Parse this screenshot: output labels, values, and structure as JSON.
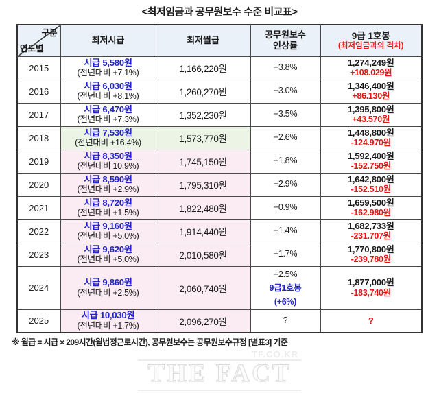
{
  "title": "<최저임금과 공무원보수 수준 비교표>",
  "colors": {
    "blue": "#2424cc",
    "red": "#ee1111",
    "header_bg": "#eaf1f8",
    "green_bg": "#ebf4e5",
    "pink_bg": "#fbecf3",
    "border": "#4a4a4a"
  },
  "table": {
    "header": {
      "corner_top": "구분",
      "corner_bottom": "연도별",
      "col_hourly": "최저시급",
      "col_monthly": "최저월급",
      "col_rate_line1": "공무원보수",
      "col_rate_line2": "인상률",
      "col_grade9": "9급 1호봉",
      "col_grade9_sub": "(최저임금과의 격차)"
    },
    "rows": [
      {
        "year": "2015",
        "hl": "none",
        "hourly": [
          {
            "t": "시급 5,580원",
            "c": "blue",
            "b": true
          },
          {
            "t": "(전년대비 +7.1%)",
            "c": "black",
            "b": false
          }
        ],
        "monthly": "1,166,220원",
        "rate": [
          {
            "t": "+3.8%",
            "c": "black",
            "b": false
          }
        ],
        "grade9": [
          {
            "t": "1,274,249원",
            "c": "black",
            "b": true
          },
          {
            "t": "+108.029원",
            "c": "red",
            "b": true
          }
        ]
      },
      {
        "year": "2016",
        "hl": "none",
        "hourly": [
          {
            "t": "시급 6,030원",
            "c": "blue",
            "b": true
          },
          {
            "t": "(전년대비 +8.1%)",
            "c": "black",
            "b": false
          }
        ],
        "monthly": "1,260,270원",
        "rate": [
          {
            "t": "+3.0%",
            "c": "black",
            "b": false
          }
        ],
        "grade9": [
          {
            "t": "1,346,400원",
            "c": "black",
            "b": true
          },
          {
            "t": "+86.130원",
            "c": "red",
            "b": true
          }
        ]
      },
      {
        "year": "2017",
        "hl": "none",
        "hourly": [
          {
            "t": "시급 6,470원",
            "c": "blue",
            "b": true
          },
          {
            "t": "(전년대비 +7.3%)",
            "c": "black",
            "b": false
          }
        ],
        "monthly": "1,352,230원",
        "rate": [
          {
            "t": "+3.5%",
            "c": "black",
            "b": false
          }
        ],
        "grade9": [
          {
            "t": "1,395,800원",
            "c": "black",
            "b": true
          },
          {
            "t": "+43.570원",
            "c": "red",
            "b": true
          }
        ]
      },
      {
        "year": "2018",
        "hl": "green",
        "hourly": [
          {
            "t": "시급 7,530원",
            "c": "blue",
            "b": true
          },
          {
            "t": "(전년대비 +16.4%)",
            "c": "black",
            "b": false
          }
        ],
        "monthly": "1,573,770원",
        "rate": [
          {
            "t": "+2.6%",
            "c": "black",
            "b": false
          }
        ],
        "grade9": [
          {
            "t": "1,448,800원",
            "c": "black",
            "b": true
          },
          {
            "t": "-124.970원",
            "c": "red",
            "b": true
          }
        ]
      },
      {
        "year": "2019",
        "hl": "pink",
        "hourly": [
          {
            "t": "시급 8,350원",
            "c": "blue",
            "b": true
          },
          {
            "t": "(전년대비 10.9%)",
            "c": "black",
            "b": false
          }
        ],
        "monthly": "1,745,150원",
        "rate": [
          {
            "t": "+1.8%",
            "c": "black",
            "b": false
          }
        ],
        "grade9": [
          {
            "t": "1,592,400원",
            "c": "black",
            "b": true
          },
          {
            "t": "-152.750원",
            "c": "red",
            "b": true
          }
        ]
      },
      {
        "year": "2020",
        "hl": "pink",
        "hourly": [
          {
            "t": "시급 8,590원",
            "c": "blue",
            "b": true
          },
          {
            "t": "(전년대비 +2.9%)",
            "c": "black",
            "b": false
          }
        ],
        "monthly": "1,795,310원",
        "rate": [
          {
            "t": "+2.9%",
            "c": "black",
            "b": false
          }
        ],
        "grade9": [
          {
            "t": "1,642,800원",
            "c": "black",
            "b": true
          },
          {
            "t": "-152.510원",
            "c": "red",
            "b": true
          }
        ]
      },
      {
        "year": "2021",
        "hl": "pink",
        "hourly": [
          {
            "t": "시급 8,720원",
            "c": "blue",
            "b": true
          },
          {
            "t": "(전년대비 +1.5%)",
            "c": "black",
            "b": false
          }
        ],
        "monthly": "1,822,480원",
        "rate": [
          {
            "t": "+0.9%",
            "c": "black",
            "b": false
          }
        ],
        "grade9": [
          {
            "t": "1,659,500원",
            "c": "black",
            "b": true
          },
          {
            "t": "-162.980원",
            "c": "red",
            "b": true
          }
        ]
      },
      {
        "year": "2022",
        "hl": "pink",
        "hourly": [
          {
            "t": "시급 9,160원",
            "c": "blue",
            "b": true
          },
          {
            "t": "(전년대비 +5.0%)",
            "c": "black",
            "b": false
          }
        ],
        "monthly": "1,914,440원",
        "rate": [
          {
            "t": "+1.4%",
            "c": "black",
            "b": false
          }
        ],
        "grade9": [
          {
            "t": "1,682,733원",
            "c": "black",
            "b": true
          },
          {
            "t": "-231.707원",
            "c": "red",
            "b": true
          }
        ]
      },
      {
        "year": "2023",
        "hl": "pink",
        "hourly": [
          {
            "t": "시급 9,620원",
            "c": "blue",
            "b": true
          },
          {
            "t": "(전년대비 +5.0%)",
            "c": "black",
            "b": false
          }
        ],
        "monthly": "2,010,580원",
        "rate": [
          {
            "t": "+1.7%",
            "c": "black",
            "b": false
          }
        ],
        "grade9": [
          {
            "t": "1,770,800원",
            "c": "black",
            "b": true
          },
          {
            "t": "-239,780원",
            "c": "red",
            "b": true
          }
        ]
      },
      {
        "year": "2024",
        "hl": "pink",
        "hourly": [
          {
            "t": "시급 9,860원",
            "c": "blue",
            "b": true
          },
          {
            "t": "(전년대비 +2.5%)",
            "c": "black",
            "b": false
          }
        ],
        "monthly": "2,060,740원",
        "rate": [
          {
            "t": "+2.5%",
            "c": "black",
            "b": false
          },
          {
            "t": "9급1호봉",
            "c": "blue",
            "b": true
          },
          {
            "t": "(+6%)",
            "c": "blue",
            "b": true
          }
        ],
        "grade9": [
          {
            "t": "1,877,000원",
            "c": "black",
            "b": true
          },
          {
            "t": "-183,740원",
            "c": "red",
            "b": true
          }
        ]
      },
      {
        "year": "2025",
        "hl": "pink",
        "hourly": [
          {
            "t": "시급 10,030원",
            "c": "blue",
            "b": true
          },
          {
            "t": "(전년대비 +1.7%)",
            "c": "black",
            "b": false
          }
        ],
        "monthly": "2,096,270원",
        "rate": [
          {
            "t": "?",
            "c": "black",
            "b": false
          }
        ],
        "grade9": [
          {
            "t": "?",
            "c": "red",
            "b": true
          }
        ]
      }
    ]
  },
  "footnote": "※ 월급 = 시급 × 209시간(월법정근로시간),  공무원보수는 공무원보수규정 [별표3] 기준",
  "watermark": {
    "url": "TF.CO.KR",
    "logo": "THE FACT"
  },
  "chart_data": {
    "type": "table",
    "title": "최저임금과 공무원보수 수준 비교표",
    "columns": [
      "연도",
      "최저시급(원)",
      "최저시급 전년대비",
      "최저월급(원)",
      "공무원보수 인상률",
      "9급 1호봉(원)",
      "최저임금과의 격차(원)"
    ],
    "rows": [
      [
        2015,
        5580,
        "+7.1%",
        1166220,
        "+3.8%",
        1274249,
        108029
      ],
      [
        2016,
        6030,
        "+8.1%",
        1260270,
        "+3.0%",
        1346400,
        86130
      ],
      [
        2017,
        6470,
        "+7.3%",
        1352230,
        "+3.5%",
        1395800,
        43570
      ],
      [
        2018,
        7530,
        "+16.4%",
        1573770,
        "+2.6%",
        1448800,
        -124970
      ],
      [
        2019,
        8350,
        "10.9%",
        1745150,
        "+1.8%",
        1592400,
        -152750
      ],
      [
        2020,
        8590,
        "+2.9%",
        1795310,
        "+2.9%",
        1642800,
        -152510
      ],
      [
        2021,
        8720,
        "+1.5%",
        1822480,
        "+0.9%",
        1659500,
        -162980
      ],
      [
        2022,
        9160,
        "+5.0%",
        1914440,
        "+1.4%",
        1682733,
        -231707
      ],
      [
        2023,
        9620,
        "+5.0%",
        2010580,
        "+1.7%",
        1770800,
        -239780
      ],
      [
        2024,
        9860,
        "+2.5%",
        2060740,
        "+2.5% (9급1호봉 +6%)",
        1877000,
        -183740
      ],
      [
        2025,
        10030,
        "+1.7%",
        2096270,
        "?",
        null,
        null
      ]
    ]
  }
}
